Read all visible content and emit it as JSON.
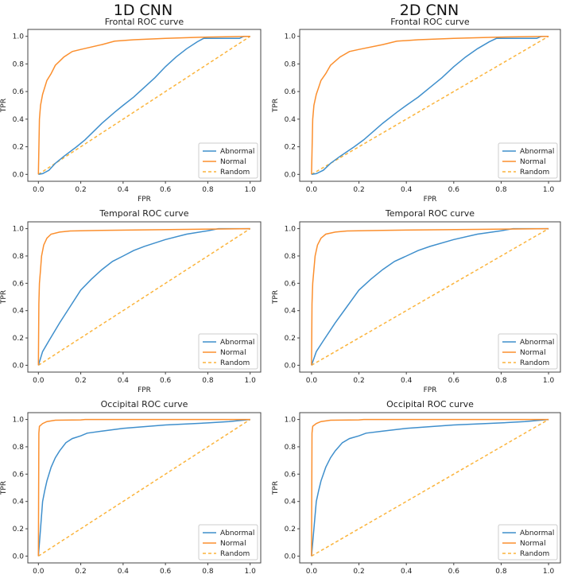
{
  "headers": [
    "1D CNN",
    "2D CNN"
  ],
  "colors": {
    "abnormal": "#3f8fcc",
    "normal": "#fb8f2e",
    "random": "#fbb43c"
  },
  "chart_data": [
    {
      "type": "line",
      "model": "1D CNN",
      "title": "Frontal ROC curve",
      "xlabel": "FPR",
      "ylabel": "TPR",
      "xlim": [
        0,
        1
      ],
      "ylim": [
        0,
        1
      ],
      "xticks": [
        "0.0",
        "0.2",
        "0.4",
        "0.6",
        "0.8",
        "1.0"
      ],
      "yticks": [
        "0.0",
        "0.2",
        "0.4",
        "0.6",
        "0.8",
        "1.0"
      ],
      "legend": "lower-right",
      "series": [
        {
          "name": "Abnormal",
          "key": "abnormal",
          "x": [
            0,
            0.02,
            0.05,
            0.08,
            0.12,
            0.18,
            0.22,
            0.3,
            0.36,
            0.4,
            0.45,
            0.5,
            0.55,
            0.6,
            0.65,
            0.7,
            0.75,
            0.78,
            0.95,
            0.97,
            1
          ],
          "y": [
            0,
            0.005,
            0.03,
            0.08,
            0.13,
            0.2,
            0.25,
            0.37,
            0.45,
            0.5,
            0.56,
            0.63,
            0.7,
            0.78,
            0.85,
            0.91,
            0.96,
            0.985,
            0.985,
            1,
            1
          ]
        },
        {
          "name": "Normal",
          "key": "normal",
          "x": [
            0,
            0.005,
            0.01,
            0.02,
            0.03,
            0.04,
            0.06,
            0.08,
            0.1,
            0.12,
            0.16,
            0.2,
            0.3,
            0.36,
            0.45,
            0.6,
            0.8,
            1
          ],
          "y": [
            0,
            0.4,
            0.5,
            0.58,
            0.63,
            0.68,
            0.73,
            0.79,
            0.82,
            0.85,
            0.89,
            0.905,
            0.94,
            0.965,
            0.975,
            0.985,
            0.995,
            1
          ]
        },
        {
          "name": "Random",
          "key": "random",
          "dashed": true,
          "x": [
            0,
            1
          ],
          "y": [
            0,
            1
          ]
        }
      ]
    },
    {
      "type": "line",
      "model": "2D CNN",
      "title": "Frontal ROC curve",
      "xlabel": "FPR",
      "ylabel": "TPR",
      "xlim": [
        0,
        1
      ],
      "ylim": [
        0,
        1
      ],
      "xticks": [
        "0.0",
        "0.2",
        "0.4",
        "0.6",
        "0.8",
        "1.0"
      ],
      "yticks": [
        "0.0",
        "0.2",
        "0.4",
        "0.6",
        "0.8",
        "1.0"
      ],
      "legend": "lower-right",
      "series": [
        {
          "name": "Abnormal",
          "key": "abnormal",
          "x": [
            0,
            0.02,
            0.05,
            0.08,
            0.12,
            0.18,
            0.22,
            0.3,
            0.36,
            0.4,
            0.45,
            0.5,
            0.55,
            0.6,
            0.65,
            0.7,
            0.75,
            0.78,
            0.95,
            0.97,
            1
          ],
          "y": [
            0,
            0.005,
            0.03,
            0.08,
            0.13,
            0.2,
            0.25,
            0.37,
            0.45,
            0.5,
            0.56,
            0.63,
            0.7,
            0.78,
            0.85,
            0.91,
            0.96,
            0.985,
            0.985,
            1,
            1
          ]
        },
        {
          "name": "Normal",
          "key": "normal",
          "x": [
            0,
            0.005,
            0.01,
            0.02,
            0.03,
            0.04,
            0.06,
            0.08,
            0.1,
            0.12,
            0.16,
            0.2,
            0.3,
            0.36,
            0.45,
            0.6,
            0.8,
            1
          ],
          "y": [
            0,
            0.4,
            0.5,
            0.58,
            0.63,
            0.68,
            0.73,
            0.79,
            0.82,
            0.85,
            0.89,
            0.905,
            0.94,
            0.965,
            0.975,
            0.985,
            0.995,
            1
          ]
        },
        {
          "name": "Random",
          "key": "random",
          "dashed": true,
          "x": [
            0,
            1
          ],
          "y": [
            0,
            1
          ]
        }
      ]
    },
    {
      "type": "line",
      "model": "1D CNN",
      "title": "Temporal ROC curve",
      "xlabel": "FPR",
      "ylabel": "TPR",
      "xlim": [
        0,
        1
      ],
      "ylim": [
        0,
        1
      ],
      "xticks": [
        "0.0",
        "0.2",
        "0.4",
        "0.6",
        "0.8",
        "1.0"
      ],
      "yticks": [
        "0.0",
        "0.2",
        "0.4",
        "0.6",
        "0.8",
        "1.0"
      ],
      "legend": "lower-right",
      "series": [
        {
          "name": "Abnormal",
          "key": "abnormal",
          "x": [
            0,
            0.02,
            0.05,
            0.1,
            0.15,
            0.2,
            0.25,
            0.3,
            0.35,
            0.4,
            0.45,
            0.5,
            0.6,
            0.7,
            0.8,
            0.85,
            1
          ],
          "y": [
            0,
            0.1,
            0.18,
            0.31,
            0.43,
            0.55,
            0.63,
            0.7,
            0.76,
            0.8,
            0.84,
            0.87,
            0.92,
            0.96,
            0.985,
            1,
            1
          ]
        },
        {
          "name": "Normal",
          "key": "normal",
          "x": [
            0,
            0.002,
            0.005,
            0.01,
            0.015,
            0.025,
            0.04,
            0.06,
            0.1,
            0.15,
            0.3,
            0.7,
            1
          ],
          "y": [
            0,
            0.45,
            0.6,
            0.7,
            0.8,
            0.88,
            0.93,
            0.96,
            0.975,
            0.983,
            0.988,
            0.995,
            1
          ]
        },
        {
          "name": "Random",
          "key": "random",
          "dashed": true,
          "x": [
            0,
            1
          ],
          "y": [
            0,
            1
          ]
        }
      ]
    },
    {
      "type": "line",
      "model": "2D CNN",
      "title": "Temporal ROC curve",
      "xlabel": "FPR",
      "ylabel": "TPR",
      "xlim": [
        0,
        1
      ],
      "ylim": [
        0,
        1
      ],
      "xticks": [
        "0.0",
        "0.2",
        "0.4",
        "0.6",
        "0.8",
        "1.0"
      ],
      "yticks": [
        "0.0",
        "0.2",
        "0.4",
        "0.6",
        "0.8",
        "1.0"
      ],
      "legend": "lower-right",
      "series": [
        {
          "name": "Abnormal",
          "key": "abnormal",
          "x": [
            0,
            0.02,
            0.05,
            0.1,
            0.15,
            0.2,
            0.25,
            0.3,
            0.35,
            0.4,
            0.45,
            0.5,
            0.6,
            0.7,
            0.8,
            0.85,
            1
          ],
          "y": [
            0,
            0.1,
            0.18,
            0.31,
            0.43,
            0.55,
            0.63,
            0.7,
            0.76,
            0.8,
            0.84,
            0.87,
            0.92,
            0.96,
            0.985,
            1,
            1
          ]
        },
        {
          "name": "Normal",
          "key": "normal",
          "x": [
            0,
            0.002,
            0.005,
            0.01,
            0.015,
            0.025,
            0.04,
            0.06,
            0.1,
            0.15,
            0.3,
            0.7,
            1
          ],
          "y": [
            0,
            0.45,
            0.6,
            0.7,
            0.8,
            0.88,
            0.93,
            0.96,
            0.975,
            0.983,
            0.988,
            0.995,
            1
          ]
        },
        {
          "name": "Random",
          "key": "random",
          "dashed": true,
          "x": [
            0,
            1
          ],
          "y": [
            0,
            1
          ]
        }
      ]
    },
    {
      "type": "line",
      "model": "1D CNN",
      "title": "Occipital ROC curve",
      "ylabel": "TPR",
      "xlim": [
        0,
        1
      ],
      "ylim": [
        0,
        1
      ],
      "xticks": [
        "0.0",
        "0.2",
        "0.4",
        "0.6",
        "0.8",
        "1.0"
      ],
      "yticks": [
        "0.0",
        "0.2",
        "0.4",
        "0.6",
        "0.8",
        "1.0"
      ],
      "legend": "lower-right",
      "series": [
        {
          "name": "Abnormal",
          "key": "abnormal",
          "x": [
            0,
            0.01,
            0.02,
            0.03,
            0.04,
            0.06,
            0.08,
            0.1,
            0.13,
            0.16,
            0.2,
            0.23,
            0.3,
            0.4,
            0.6,
            0.8,
            0.9,
            1
          ],
          "y": [
            0,
            0.2,
            0.4,
            0.48,
            0.55,
            0.65,
            0.72,
            0.77,
            0.83,
            0.86,
            0.88,
            0.9,
            0.915,
            0.935,
            0.96,
            0.975,
            0.985,
            1
          ]
        },
        {
          "name": "Normal",
          "key": "normal",
          "x": [
            0,
            0.002,
            0.005,
            0.02,
            0.04,
            0.08,
            0.2,
            0.22,
            1
          ],
          "y": [
            0,
            0.9,
            0.95,
            0.97,
            0.985,
            0.995,
            0.997,
            1,
            1
          ]
        },
        {
          "name": "Random",
          "key": "random",
          "dashed": true,
          "x": [
            0,
            1
          ],
          "y": [
            0,
            1
          ]
        }
      ]
    },
    {
      "type": "line",
      "model": "2D CNN",
      "title": "Occipital ROC curve",
      "ylabel": "TPR",
      "xlim": [
        0,
        1
      ],
      "ylim": [
        0,
        1
      ],
      "xticks": [
        "0.0",
        "0.2",
        "0.4",
        "0.6",
        "0.8",
        "1.0"
      ],
      "yticks": [
        "0.0",
        "0.2",
        "0.4",
        "0.6",
        "0.8",
        "1.0"
      ],
      "legend": "lower-right",
      "series": [
        {
          "name": "Abnormal",
          "key": "abnormal",
          "x": [
            0,
            0.01,
            0.02,
            0.03,
            0.04,
            0.06,
            0.08,
            0.1,
            0.13,
            0.16,
            0.2,
            0.23,
            0.3,
            0.4,
            0.6,
            0.8,
            0.9,
            1
          ],
          "y": [
            0,
            0.2,
            0.4,
            0.48,
            0.55,
            0.65,
            0.72,
            0.77,
            0.83,
            0.86,
            0.88,
            0.9,
            0.915,
            0.935,
            0.96,
            0.975,
            0.985,
            1
          ]
        },
        {
          "name": "Normal",
          "key": "normal",
          "x": [
            0,
            0.002,
            0.005,
            0.02,
            0.04,
            0.08,
            0.2,
            0.22,
            1
          ],
          "y": [
            0,
            0.9,
            0.95,
            0.97,
            0.985,
            0.995,
            0.997,
            1,
            1
          ]
        },
        {
          "name": "Random",
          "key": "random",
          "dashed": true,
          "x": [
            0,
            1
          ],
          "y": [
            0,
            1
          ]
        }
      ]
    }
  ]
}
